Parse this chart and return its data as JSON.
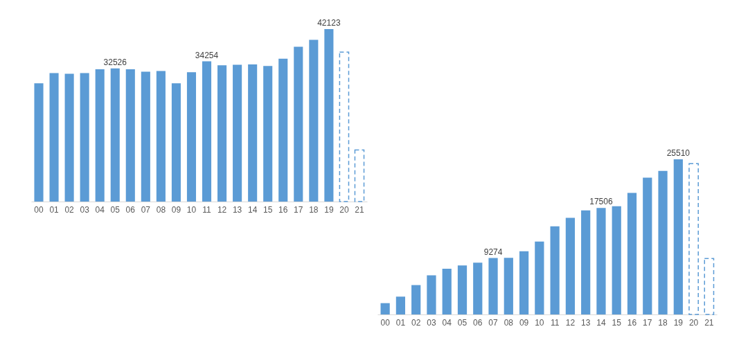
{
  "chart_data": [
    {
      "type": "bar",
      "categories": [
        "00",
        "01",
        "02",
        "03",
        "04",
        "05",
        "06",
        "07",
        "08",
        "09",
        "10",
        "11",
        "12",
        "13",
        "14",
        "15",
        "16",
        "17",
        "18",
        "19",
        "20",
        "21"
      ],
      "series": [
        {
          "color": "#5b9bd5",
          "values": [
            28900,
            31400,
            31200,
            31400,
            32300,
            32526,
            32300,
            31700,
            31900,
            28900,
            31600,
            34254,
            33300,
            33400,
            33500,
            33100,
            34900,
            37800,
            39500,
            42123,
            null,
            null
          ],
          "value_labels": [
            null,
            null,
            null,
            null,
            null,
            "32526",
            null,
            null,
            null,
            null,
            null,
            "34254",
            null,
            null,
            null,
            null,
            null,
            null,
            null,
            "42123",
            null,
            null
          ]
        },
        {
          "color": "#5b9bd5",
          "line_style": "dashed",
          "values": [
            null,
            null,
            null,
            null,
            null,
            null,
            null,
            null,
            null,
            null,
            null,
            null,
            null,
            null,
            null,
            null,
            null,
            null,
            null,
            null,
            36500,
            12600
          ]
        }
      ],
      "tick_labels": "x"
    },
    {
      "type": "bar",
      "categories": [
        "00",
        "01",
        "02",
        "03",
        "04",
        "05",
        "06",
        "07",
        "08",
        "09",
        "10",
        "11",
        "12",
        "13",
        "14",
        "15",
        "16",
        "17",
        "18",
        "19",
        "20",
        "21"
      ],
      "series": [
        {
          "color": "#5b9bd5",
          "values": [
            1860,
            2930,
            4830,
            6430,
            7530,
            8060,
            8520,
            9274,
            9300,
            10400,
            12000,
            14500,
            15900,
            17100,
            17506,
            17800,
            20000,
            22500,
            23600,
            25510,
            null,
            null
          ],
          "value_labels": [
            null,
            null,
            null,
            null,
            null,
            null,
            null,
            "9274",
            null,
            null,
            null,
            null,
            null,
            null,
            "17506",
            null,
            null,
            null,
            null,
            "25510",
            null,
            null
          ]
        },
        {
          "color": "#5b9bd5",
          "line_style": "dashed",
          "values": [
            null,
            null,
            null,
            null,
            null,
            null,
            null,
            null,
            null,
            null,
            null,
            null,
            null,
            null,
            null,
            null,
            null,
            null,
            null,
            null,
            24800,
            9200
          ]
        }
      ],
      "tick_labels": "x"
    }
  ]
}
